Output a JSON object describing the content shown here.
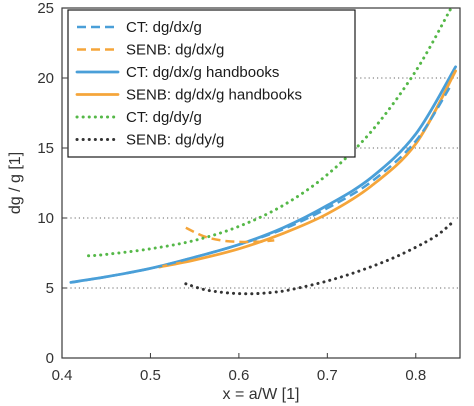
{
  "chart_data": {
    "type": "line",
    "title": "",
    "xlabel": "x = a/W [1]",
    "ylabel": "dg / g [1]",
    "xlim": [
      0.4,
      0.85
    ],
    "ylim": [
      0,
      25
    ],
    "xticks": [
      0.4,
      0.5,
      0.6,
      0.7,
      0.8
    ],
    "yticks": [
      0,
      5,
      10,
      15,
      20,
      25
    ],
    "xtick_labels": [
      "0.4",
      "0.5",
      "0.6",
      "0.7",
      "0.8"
    ],
    "ytick_labels": [
      "0",
      "5",
      "10",
      "15",
      "20",
      "25"
    ],
    "grid": "dotted horizontal",
    "legend_position": "top-left",
    "series": [
      {
        "name": "CT: dg/dx/g",
        "color": "#4a9fd8",
        "style": "dashed",
        "x": [
          0.41,
          0.45,
          0.5,
          0.55,
          0.6,
          0.65,
          0.7,
          0.75,
          0.8,
          0.84
        ],
        "y": [
          5.4,
          5.8,
          6.4,
          7.2,
          8.1,
          9.2,
          10.7,
          12.6,
          15.5,
          19.5
        ]
      },
      {
        "name": "SENB: dg/dx/g",
        "color": "#f5a53a",
        "style": "dashed",
        "x": [
          0.54,
          0.56,
          0.58,
          0.6,
          0.62,
          0.64
        ],
        "y": [
          9.3,
          8.7,
          8.4,
          8.3,
          8.3,
          8.4
        ]
      },
      {
        "name": "CT: dg/dx/g handbooks",
        "color": "#4a9fd8",
        "style": "solid",
        "x": [
          0.41,
          0.45,
          0.5,
          0.55,
          0.6,
          0.65,
          0.7,
          0.75,
          0.8,
          0.845
        ],
        "y": [
          5.4,
          5.8,
          6.4,
          7.2,
          8.1,
          9.3,
          10.9,
          12.9,
          16.0,
          20.8
        ]
      },
      {
        "name": "SENB: dg/dx/g handbooks",
        "color": "#f5a53a",
        "style": "solid",
        "x": [
          0.51,
          0.55,
          0.6,
          0.65,
          0.7,
          0.75,
          0.8,
          0.845
        ],
        "y": [
          6.5,
          7.0,
          7.8,
          8.9,
          10.3,
          12.3,
          15.3,
          20.5
        ]
      },
      {
        "name": "CT: dg/dy/g",
        "color": "#55b848",
        "style": "dotted",
        "x": [
          0.43,
          0.45,
          0.5,
          0.55,
          0.6,
          0.65,
          0.7,
          0.75,
          0.8,
          0.84
        ],
        "y": [
          7.3,
          7.4,
          7.8,
          8.4,
          9.4,
          10.9,
          13.1,
          16.2,
          20.5,
          25.0
        ]
      },
      {
        "name": "SENB: dg/dy/g",
        "color": "#333333",
        "style": "dotted",
        "x": [
          0.54,
          0.56,
          0.58,
          0.6,
          0.62,
          0.64,
          0.66,
          0.7,
          0.74,
          0.78,
          0.82,
          0.84
        ],
        "y": [
          5.3,
          4.9,
          4.7,
          4.6,
          4.6,
          4.7,
          4.9,
          5.5,
          6.3,
          7.3,
          8.6,
          9.6
        ]
      }
    ]
  }
}
